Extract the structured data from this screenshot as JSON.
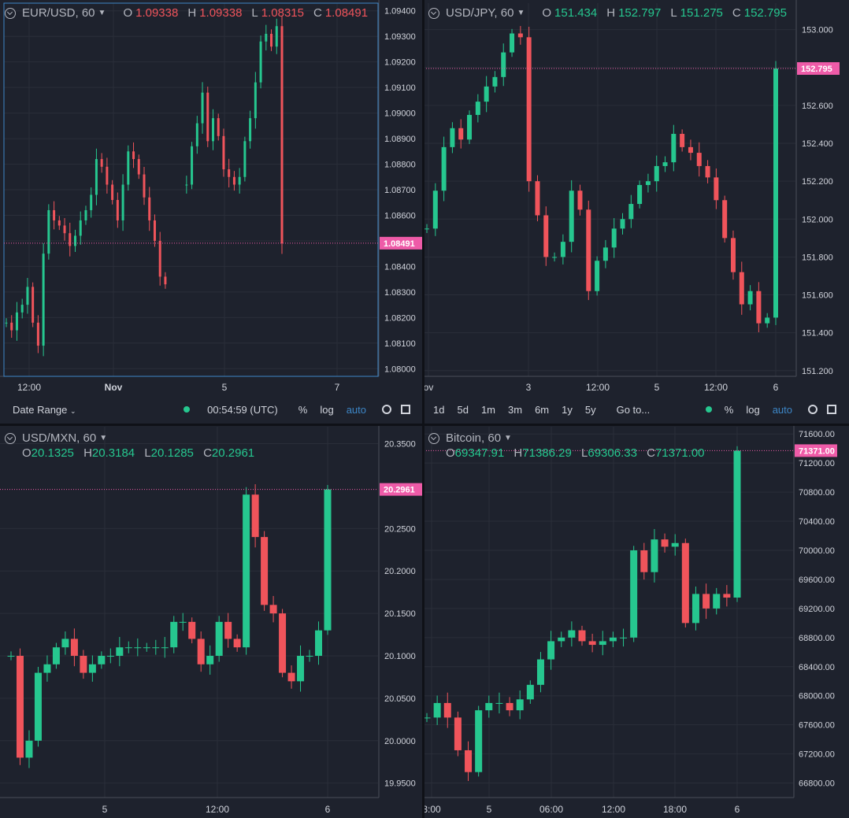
{
  "panes": [
    {
      "id": "eurusd",
      "symbol": "EUR/USD, 60",
      "o": "1.09338",
      "h": "1.09338",
      "l": "1.08315",
      "c": "1.08491",
      "ohlc_color": "#f0545b",
      "price_label": "1.08491",
      "price_label_color": "#ee5ba8",
      "y_ticks": [
        "1.09400",
        "1.09300",
        "1.09200",
        "1.09100",
        "1.09000",
        "1.08900",
        "1.08800",
        "1.08700",
        "1.08600",
        "1.08500",
        "1.08400",
        "1.08300",
        "1.08200",
        "1.08100",
        "1.08000"
      ],
      "x_ticks": [
        "12:00",
        "Nov",
        "5",
        "7"
      ]
    },
    {
      "id": "usdjpy",
      "symbol": "USD/JPY, 60",
      "o": "151.434",
      "h": "152.797",
      "l": "151.275",
      "c": "152.795",
      "ohlc_color": "#26c78f",
      "price_label": "152.795",
      "price_label_color": "#ee5ba8",
      "y_ticks": [
        "153.000",
        "152.800",
        "152.600",
        "152.400",
        "152.200",
        "152.000",
        "151.800",
        "151.600",
        "151.400",
        "151.200"
      ],
      "x_ticks": [
        "ov",
        "3",
        "12:00",
        "5",
        "12:00",
        "6"
      ]
    },
    {
      "id": "usdmxn",
      "symbol": "USD/MXN, 60",
      "o": "20.1325",
      "h": "20.3184",
      "l": "20.1285",
      "c": "20.2961",
      "ohlc_color": "#26c78f",
      "price_label": "20.2961",
      "price_label_color": "#ee5ba8",
      "y_ticks": [
        "20.3500",
        "20.2500",
        "20.2000",
        "20.1500",
        "20.1000",
        "20.0500",
        "20.0000",
        "19.9500"
      ],
      "x_ticks": [
        "5",
        "12:00",
        "6"
      ]
    },
    {
      "id": "btc",
      "symbol": "Bitcoin, 60",
      "o": "69347.91",
      "h": "71386.29",
      "l": "69306.33",
      "c": "71371.00",
      "ohlc_color": "#26c78f",
      "price_label": "71371.00",
      "price_label_color": "#ee5ba8",
      "y_ticks": [
        "71600.00",
        "71200.00",
        "70800.00",
        "70400.00",
        "70000.00",
        "69600.00",
        "69200.00",
        "68800.00",
        "68400.00",
        "68000.00",
        "67600.00",
        "67200.00",
        "66800.00"
      ],
      "x_ticks": [
        "3:00",
        "5",
        "06:00",
        "12:00",
        "18:00",
        "6"
      ]
    }
  ],
  "toolbar_left": {
    "date_range": "Date Range",
    "time": "00:54:59 (UTC)",
    "percent": "%",
    "log": "log",
    "auto": "auto"
  },
  "toolbar_right": {
    "ranges": [
      "1d",
      "5d",
      "1m",
      "3m",
      "6m",
      "1y",
      "5y"
    ],
    "goto": "Go to...",
    "percent": "%",
    "log": "log",
    "auto": "auto"
  },
  "colors": {
    "up": "#26c78f",
    "down": "#f0545b",
    "bg": "#1e222d",
    "grid": "#2a2e39",
    "axis_text": "#d1d4dc",
    "price_line": "#ee5ba8"
  },
  "chart_data": [
    {
      "type": "candlestick",
      "title": "EUR/USD, 60",
      "ylim": [
        1.0797,
        1.0943
      ],
      "x_ticks": [
        "12:00",
        "Nov",
        "5",
        "7"
      ],
      "close_series": [
        1.0818,
        1.0815,
        1.0822,
        1.0825,
        1.0832,
        1.0818,
        1.0809,
        1.0845,
        1.0862,
        1.0858,
        1.0856,
        1.0853,
        1.0848,
        1.0852,
        1.0858,
        1.0862,
        1.0868,
        1.0882,
        1.0879,
        1.0872,
        1.0866,
        1.0858,
        1.0872,
        1.0885,
        1.0882,
        1.0876,
        1.0867,
        1.0858,
        1.085,
        1.0836,
        1.0833,
        null,
        null,
        null,
        1.0872,
        1.0887,
        1.0896,
        1.0908,
        1.0889,
        1.0898,
        1.0891,
        1.0878,
        1.0875,
        1.0872,
        1.0875,
        1.0889,
        1.0898,
        1.0912,
        1.0928,
        1.0931,
        1.0926,
        1.0934,
        1.0849
      ],
      "last": 1.08491
    },
    {
      "type": "candlestick",
      "title": "USD/JPY, 60",
      "ylim": [
        151.17,
        153.14
      ],
      "x_ticks": [
        "ov",
        "3",
        "12:00",
        "5",
        "12:00",
        "6"
      ],
      "close_series": [
        151.95,
        152.15,
        152.38,
        152.48,
        152.42,
        152.55,
        152.62,
        152.7,
        152.75,
        152.88,
        152.98,
        152.96,
        152.2,
        152.02,
        151.8,
        151.8,
        151.88,
        152.15,
        152.05,
        151.62,
        151.78,
        151.85,
        151.95,
        152.0,
        152.08,
        152.18,
        152.2,
        152.28,
        152.3,
        152.45,
        152.38,
        152.35,
        152.28,
        152.22,
        152.1,
        151.9,
        151.72,
        151.55,
        151.62,
        151.45,
        151.48,
        152.795
      ],
      "last": 152.795
    },
    {
      "type": "candlestick",
      "title": "USD/MXN, 60",
      "ylim": [
        19.933,
        20.37
      ],
      "x_ticks": [
        "5",
        "12:00",
        "6"
      ],
      "close_series": [
        20.1,
        19.98,
        20.0,
        20.08,
        20.09,
        20.11,
        20.12,
        20.1,
        20.08,
        20.09,
        20.1,
        20.1,
        20.11,
        20.11,
        20.11,
        20.11,
        20.11,
        20.11,
        20.14,
        20.14,
        20.12,
        20.09,
        20.1,
        20.14,
        20.12,
        20.11,
        20.29,
        20.24,
        20.16,
        20.15,
        20.08,
        20.07,
        20.1,
        20.1,
        20.13,
        20.2961
      ],
      "last": 20.2961
    },
    {
      "type": "candlestick",
      "title": "Bitcoin, 60",
      "ylim": [
        66600,
        71700
      ],
      "x_ticks": [
        "3:00",
        "5",
        "06:00",
        "12:00",
        "18:00",
        "6"
      ],
      "close_series": [
        67700,
        67900,
        67700,
        67250,
        66950,
        67800,
        67900,
        67900,
        67800,
        67950,
        68150,
        68500,
        68750,
        68800,
        68900,
        68750,
        68700,
        68750,
        68800,
        68800,
        70000,
        69700,
        70150,
        70050,
        70100,
        69000,
        69400,
        69200,
        69400,
        69350,
        71371
      ],
      "last": 71371.0
    }
  ]
}
